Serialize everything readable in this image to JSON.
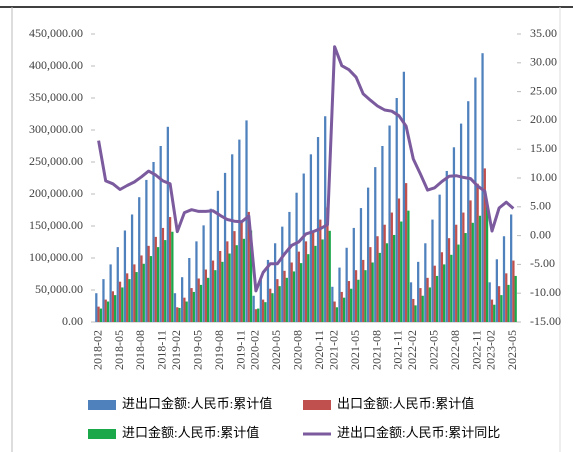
{
  "chart_data": {
    "type": "bar",
    "categories": [
      "2018-02",
      null,
      null,
      "2018-05",
      null,
      null,
      "2018-08",
      null,
      null,
      "2018-11",
      null,
      "2019-02",
      null,
      null,
      "2019-05",
      null,
      null,
      "2019-08",
      null,
      null,
      "2019-11",
      null,
      "2020-02",
      null,
      null,
      "2020-05",
      null,
      null,
      "2020-08",
      null,
      null,
      "2020-11",
      null,
      "2021-02",
      null,
      null,
      "2021-05",
      null,
      null,
      "2021-08",
      null,
      null,
      "2021-11",
      null,
      "2022-02",
      null,
      null,
      "2022-05",
      null,
      null,
      "2022-08",
      null,
      null,
      "2022-11",
      null,
      "2023-02",
      null,
      null,
      "2023-05"
    ],
    "series": [
      {
        "name": "进出口金额:人民币:累计值",
        "color": "#4f81bd",
        "values": [
          45000,
          67000,
          90000,
          117000,
          143000,
          168000,
          195000,
          222000,
          250000,
          275000,
          305000,
          45000,
          70000,
          100000,
          126000,
          151000,
          177000,
          205000,
          233000,
          262000,
          285000,
          315000,
          41000,
          66000,
          97000,
          123000,
          149000,
          172000,
          202000,
          232000,
          262000,
          289000,
          321500,
          55000,
          85000,
          116000,
          147000,
          178000,
          210000,
          242000,
          275000,
          307000,
          350000,
          391000,
          62000,
          94000,
          123000,
          160000,
          199000,
          236000,
          273000,
          310000,
          345000,
          382000,
          420000,
          62000,
          98000,
          134000,
          168000
        ]
      },
      {
        "name": "出口金额:人民币:累计值",
        "color": "#c0504d",
        "values": [
          24000,
          35000,
          48000,
          63000,
          76000,
          90000,
          104000,
          119000,
          133000,
          147000,
          164000,
          23000,
          38000,
          53000,
          68000,
          82000,
          96000,
          111000,
          126000,
          142000,
          155000,
          172000,
          20000,
          35000,
          52000,
          67000,
          80000,
          93000,
          110000,
          126000,
          143000,
          160000,
          179000,
          32000,
          47000,
          64000,
          81000,
          97000,
          117000,
          134000,
          152000,
          171000,
          193000,
          217000,
          36000,
          53000,
          69000,
          88000,
          109000,
          131000,
          152000,
          171000,
          190000,
          216000,
          240000,
          35000,
          56000,
          76000,
          96000
        ]
      },
      {
        "name": "进口金额:人民币:累计值",
        "color": "#1aa84a",
        "values": [
          21000,
          32000,
          42000,
          54000,
          67000,
          78000,
          91000,
          103000,
          117000,
          128000,
          141000,
          22000,
          32000,
          47000,
          58000,
          69000,
          81000,
          94000,
          107000,
          120000,
          130000,
          143000,
          21000,
          31000,
          45000,
          56000,
          69000,
          79000,
          92000,
          106000,
          119000,
          129000,
          142500,
          23000,
          38000,
          52000,
          66000,
          81000,
          93000,
          108000,
          123000,
          136000,
          157000,
          174000,
          26000,
          41000,
          54000,
          72000,
          90000,
          105000,
          121000,
          139000,
          155000,
          166000,
          180000,
          27000,
          42000,
          58000,
          72000
        ]
      },
      {
        "name": "进出口金额:人民币:累计同比",
        "color": "#7b5a9e",
        "type": "line",
        "axis": "y2",
        "values": [
          16.5,
          9.5,
          9.0,
          8.0,
          8.7,
          9.3,
          10.2,
          11.2,
          10.5,
          9.5,
          9.0,
          0.7,
          4.0,
          4.5,
          4.2,
          4.2,
          4.3,
          3.5,
          2.8,
          2.5,
          2.4,
          3.4,
          -9.6,
          -6.4,
          -4.9,
          -4.9,
          -3.2,
          -1.7,
          -1.1,
          0.3,
          0.7,
          1.2,
          1.9,
          32.8,
          29.5,
          28.8,
          27.5,
          24.6,
          23.5,
          22.5,
          21.8,
          21.6,
          20.8,
          19.0,
          13.3,
          10.7,
          7.9,
          8.3,
          9.4,
          10.3,
          10.4,
          10.1,
          9.9,
          8.6,
          7.7,
          0.8,
          4.8,
          5.8,
          4.7
        ]
      }
    ],
    "ylim": [
      0,
      450000
    ],
    "yticks": [
      {
        "value": 0,
        "label": "0.00"
      },
      {
        "value": 50000,
        "label": "50,000.00"
      },
      {
        "value": 100000,
        "label": "100,000.00"
      },
      {
        "value": 150000,
        "label": "150,000.00"
      },
      {
        "value": 200000,
        "label": "200,000.00"
      },
      {
        "value": 250000,
        "label": "250,000.00"
      },
      {
        "value": 300000,
        "label": "300,000.00"
      },
      {
        "value": 350000,
        "label": "350,000.00"
      },
      {
        "value": 400000,
        "label": "400,000.00"
      },
      {
        "value": 450000,
        "label": "450,000.00"
      }
    ],
    "y2lim": [
      -15,
      35
    ],
    "y2ticks": [
      {
        "value": -15,
        "label": "-15.00"
      },
      {
        "value": -10,
        "label": "-10.00"
      },
      {
        "value": -5,
        "label": "-5.00"
      },
      {
        "value": 0,
        "label": "0.00"
      },
      {
        "value": 5,
        "label": "5.00"
      },
      {
        "value": 10,
        "label": "10.00"
      },
      {
        "value": 15,
        "label": "15.00"
      },
      {
        "value": 20,
        "label": "20.00"
      },
      {
        "value": 25,
        "label": "25.00"
      },
      {
        "value": 30,
        "label": "30.00"
      },
      {
        "value": 35,
        "label": "35.00"
      }
    ],
    "legend": "bottom"
  }
}
